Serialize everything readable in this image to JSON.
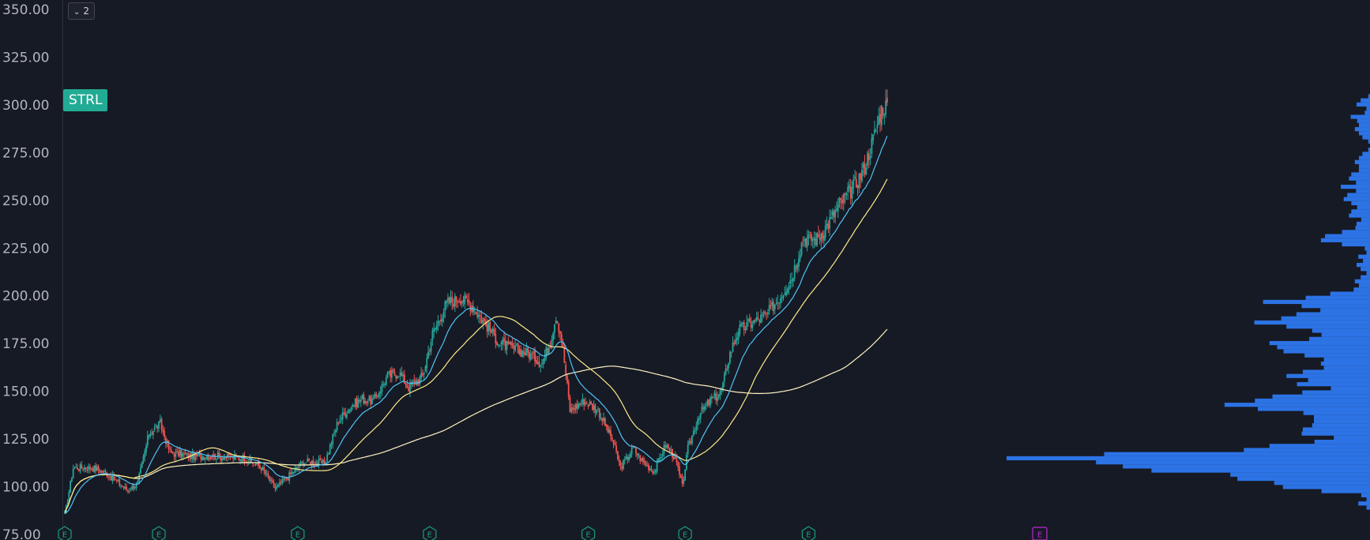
{
  "ticker": "STRL",
  "collapse_button": {
    "icon": "chevron-down-icon",
    "count": "2"
  },
  "colors": {
    "background": "#161a25",
    "up": "#26a69a",
    "down": "#ef5350",
    "ema_fast": "#4fc3f7",
    "sma_mid": "#ffeb8a",
    "sma_slow": "#fff4c2",
    "volume_profile": "#2f7bf5",
    "earnings_marker": "#1b9e77",
    "dividend_marker": "#c026d3"
  },
  "price_axis": {
    "labels": [
      "350.00",
      "325.00",
      "300.00",
      "275.00",
      "250.00",
      "225.00",
      "200.00",
      "175.00",
      "150.00",
      "125.00",
      "100.00",
      "75.00"
    ]
  },
  "chart_data": {
    "type": "candlestick",
    "title": "",
    "ylim": [
      75,
      350
    ],
    "y_ticks": [
      350,
      325,
      300,
      275,
      250,
      225,
      200,
      175,
      150,
      125,
      100,
      75
    ],
    "grid": false,
    "anchors": [
      [
        0,
        85
      ],
      [
        6,
        110
      ],
      [
        20,
        110
      ],
      [
        30,
        107
      ],
      [
        38,
        102
      ],
      [
        45,
        98
      ],
      [
        52,
        102
      ],
      [
        60,
        128
      ],
      [
        68,
        133
      ],
      [
        75,
        118
      ],
      [
        90,
        116
      ],
      [
        110,
        116
      ],
      [
        128,
        115
      ],
      [
        140,
        110
      ],
      [
        150,
        99
      ],
      [
        160,
        106
      ],
      [
        170,
        113
      ],
      [
        178,
        113
      ],
      [
        185,
        112
      ],
      [
        195,
        135
      ],
      [
        205,
        143
      ],
      [
        212,
        146
      ],
      [
        220,
        145
      ],
      [
        230,
        158
      ],
      [
        238,
        160
      ],
      [
        245,
        152
      ],
      [
        255,
        158
      ],
      [
        262,
        180
      ],
      [
        272,
        196
      ],
      [
        282,
        199
      ],
      [
        290,
        195
      ],
      [
        300,
        185
      ],
      [
        310,
        175
      ],
      [
        320,
        172
      ],
      [
        330,
        170
      ],
      [
        340,
        165
      ],
      [
        346,
        176
      ],
      [
        350,
        190
      ],
      [
        354,
        178
      ],
      [
        360,
        140
      ],
      [
        370,
        145
      ],
      [
        380,
        140
      ],
      [
        390,
        125
      ],
      [
        396,
        110
      ],
      [
        405,
        120
      ],
      [
        412,
        113
      ],
      [
        420,
        108
      ],
      [
        428,
        122
      ],
      [
        435,
        115
      ],
      [
        440,
        100
      ],
      [
        444,
        120
      ],
      [
        452,
        138
      ],
      [
        460,
        145
      ],
      [
        468,
        150
      ],
      [
        474,
        170
      ],
      [
        480,
        182
      ],
      [
        490,
        186
      ],
      [
        500,
        190
      ],
      [
        510,
        200
      ],
      [
        518,
        210
      ],
      [
        526,
        230
      ],
      [
        536,
        230
      ],
      [
        546,
        240
      ],
      [
        552,
        248
      ],
      [
        560,
        255
      ],
      [
        566,
        262
      ],
      [
        570,
        268
      ],
      [
        576,
        282
      ],
      [
        582,
        298
      ],
      [
        586,
        300
      ]
    ],
    "annotations": {
      "earnings_markers": [
        "E",
        "E",
        "E",
        "E",
        "E",
        "E",
        "E"
      ],
      "dividend_marker": "E"
    }
  }
}
